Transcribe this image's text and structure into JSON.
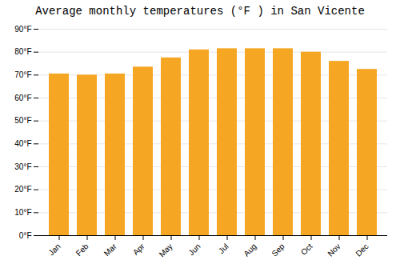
{
  "chart_data": {
    "type": "bar",
    "title": "Average monthly temperatures (°F ) in San Vicente",
    "categories": [
      "Jan",
      "Feb",
      "Mar",
      "Apr",
      "May",
      "Jun",
      "Jul",
      "Aug",
      "Sep",
      "Oct",
      "Nov",
      "Dec"
    ],
    "values": [
      70.5,
      70.0,
      70.5,
      73.5,
      77.5,
      81.0,
      81.5,
      81.5,
      81.5,
      80.0,
      76.0,
      72.5
    ],
    "color": "#F5A623",
    "ylim": [
      0,
      90
    ],
    "yticks": [
      {
        "value": 0,
        "label": "0°F"
      },
      {
        "value": 10,
        "label": "10°F"
      },
      {
        "value": 20,
        "label": "20°F"
      },
      {
        "value": 30,
        "label": "30°F"
      },
      {
        "value": 40,
        "label": "40°F"
      },
      {
        "value": 50,
        "label": "50°F"
      },
      {
        "value": 60,
        "label": "60°F"
      },
      {
        "value": 70,
        "label": "70°F"
      },
      {
        "value": 80,
        "label": "80°F"
      },
      {
        "value": 90,
        "label": "90°F"
      }
    ],
    "grid": true
  }
}
